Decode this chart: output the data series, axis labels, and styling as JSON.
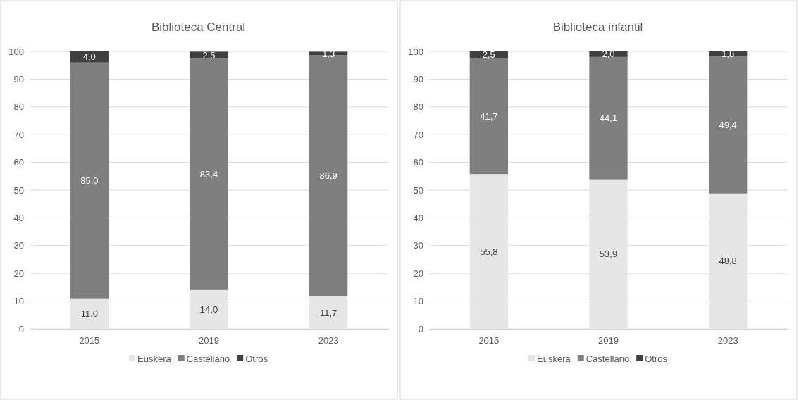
{
  "chart_data": [
    {
      "type": "bar",
      "title": "Biblioteca Central",
      "categories": [
        "2015",
        "2019",
        "2023"
      ],
      "stacked": true,
      "ylim": [
        0,
        100
      ],
      "yticks": [
        0,
        10,
        20,
        30,
        40,
        50,
        60,
        70,
        80,
        90,
        100
      ],
      "grid": "y",
      "legend": "bottom",
      "series": [
        {
          "name": "Euskera",
          "color": "#e7e6e6",
          "values": [
            11.0,
            14.0,
            11.7
          ],
          "value_labels": [
            "11,0",
            "14,0",
            "11,7"
          ]
        },
        {
          "name": "Castellano",
          "color": "#7f7f7f",
          "values": [
            85.0,
            83.4,
            86.9
          ],
          "value_labels": [
            "85,0",
            "83,4",
            "86,9"
          ]
        },
        {
          "name": "Otros",
          "color": "#404040",
          "values": [
            4.0,
            2.5,
            1.3
          ],
          "value_labels": [
            "4,0",
            "2,5",
            "1,3"
          ]
        }
      ]
    },
    {
      "type": "bar",
      "title": "Biblioteca infantil",
      "categories": [
        "2015",
        "2019",
        "2023"
      ],
      "stacked": true,
      "ylim": [
        0,
        100
      ],
      "yticks": [
        0,
        10,
        20,
        30,
        40,
        50,
        60,
        70,
        80,
        90,
        100
      ],
      "grid": "y",
      "legend": "bottom",
      "series": [
        {
          "name": "Euskera",
          "color": "#e7e6e6",
          "values": [
            55.8,
            53.9,
            48.8
          ],
          "value_labels": [
            "55,8",
            "53,9",
            "48,8"
          ]
        },
        {
          "name": "Castellano",
          "color": "#7f7f7f",
          "values": [
            41.7,
            44.1,
            49.4
          ],
          "value_labels": [
            "41,7",
            "44,1",
            "49,4"
          ]
        },
        {
          "name": "Otros",
          "color": "#404040",
          "values": [
            2.5,
            2.0,
            1.8
          ],
          "value_labels": [
            "2,5",
            "2,0",
            "1,8"
          ]
        }
      ]
    }
  ]
}
